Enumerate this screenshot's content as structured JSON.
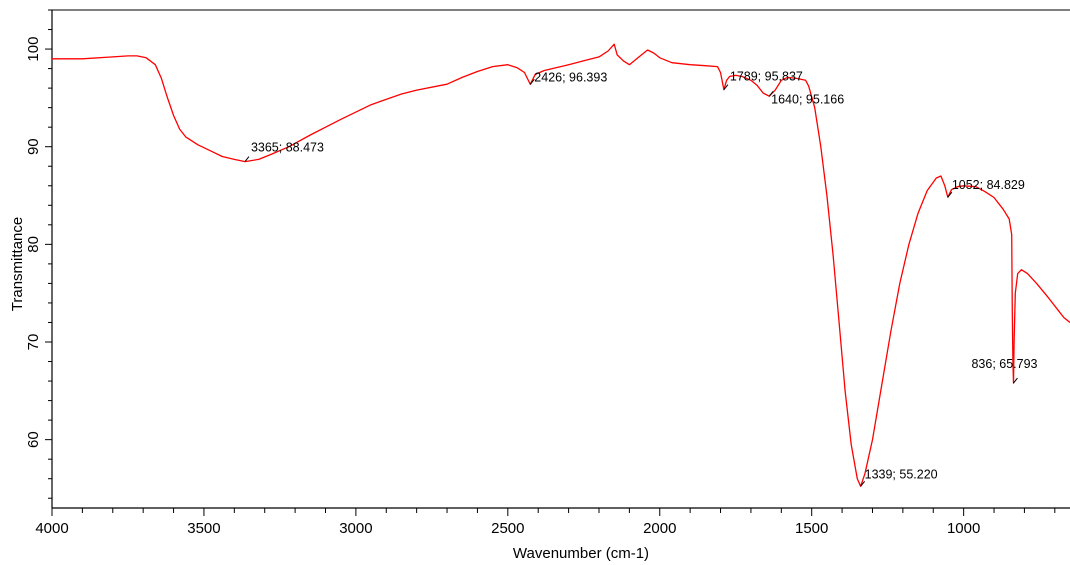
{
  "chart_data": {
    "type": "line",
    "title": "",
    "xlabel": "Wavenumber (cm-1)",
    "ylabel": "Transmittance",
    "xlim": [
      4000,
      650
    ],
    "ylim": [
      53,
      104
    ],
    "x_reversed": true,
    "grid": false,
    "x_ticks": [
      4000,
      3500,
      3000,
      2500,
      2000,
      1500,
      1000
    ],
    "y_ticks": [
      60,
      70,
      80,
      90,
      100
    ],
    "series_color": "#ff0000",
    "series": [
      {
        "points": [
          [
            4000,
            99.0
          ],
          [
            3900,
            99.0
          ],
          [
            3800,
            99.2
          ],
          [
            3750,
            99.3
          ],
          [
            3720,
            99.3
          ],
          [
            3690,
            99.1
          ],
          [
            3660,
            98.4
          ],
          [
            3640,
            97.0
          ],
          [
            3620,
            95.0
          ],
          [
            3600,
            93.2
          ],
          [
            3580,
            91.8
          ],
          [
            3560,
            91.0
          ],
          [
            3520,
            90.2
          ],
          [
            3480,
            89.6
          ],
          [
            3440,
            89.0
          ],
          [
            3400,
            88.7
          ],
          [
            3365,
            88.47
          ],
          [
            3320,
            88.7
          ],
          [
            3280,
            89.2
          ],
          [
            3220,
            90.0
          ],
          [
            3150,
            91.2
          ],
          [
            3050,
            92.8
          ],
          [
            2950,
            94.3
          ],
          [
            2850,
            95.4
          ],
          [
            2800,
            95.8
          ],
          [
            2700,
            96.4
          ],
          [
            2650,
            97.1
          ],
          [
            2600,
            97.7
          ],
          [
            2550,
            98.2
          ],
          [
            2500,
            98.4
          ],
          [
            2470,
            98.1
          ],
          [
            2445,
            97.6
          ],
          [
            2426,
            96.39
          ],
          [
            2410,
            97.4
          ],
          [
            2380,
            97.8
          ],
          [
            2300,
            98.4
          ],
          [
            2250,
            98.8
          ],
          [
            2200,
            99.2
          ],
          [
            2170,
            99.8
          ],
          [
            2150,
            100.5
          ],
          [
            2140,
            99.4
          ],
          [
            2120,
            98.8
          ],
          [
            2100,
            98.4
          ],
          [
            2080,
            98.9
          ],
          [
            2060,
            99.4
          ],
          [
            2040,
            99.9
          ],
          [
            2020,
            99.6
          ],
          [
            2000,
            99.1
          ],
          [
            1960,
            98.6
          ],
          [
            1900,
            98.4
          ],
          [
            1850,
            98.3
          ],
          [
            1810,
            98.2
          ],
          [
            1800,
            97.6
          ],
          [
            1789,
            95.84
          ],
          [
            1780,
            96.8
          ],
          [
            1770,
            97.2
          ],
          [
            1750,
            97.3
          ],
          [
            1730,
            97.2
          ],
          [
            1700,
            96.8
          ],
          [
            1680,
            96.3
          ],
          [
            1660,
            95.5
          ],
          [
            1640,
            95.17
          ],
          [
            1620,
            95.8
          ],
          [
            1600,
            96.8
          ],
          [
            1580,
            97.1
          ],
          [
            1550,
            97.0
          ],
          [
            1520,
            96.8
          ],
          [
            1510,
            96.2
          ],
          [
            1490,
            94.0
          ],
          [
            1470,
            90.0
          ],
          [
            1450,
            85.0
          ],
          [
            1430,
            79.0
          ],
          [
            1410,
            72.0
          ],
          [
            1390,
            65.0
          ],
          [
            1370,
            59.5
          ],
          [
            1350,
            56.0
          ],
          [
            1339,
            55.22
          ],
          [
            1325,
            56.5
          ],
          [
            1300,
            60.0
          ],
          [
            1270,
            65.5
          ],
          [
            1240,
            71.0
          ],
          [
            1210,
            76.0
          ],
          [
            1180,
            80.0
          ],
          [
            1150,
            83.2
          ],
          [
            1120,
            85.5
          ],
          [
            1090,
            86.8
          ],
          [
            1075,
            87.0
          ],
          [
            1062,
            86.0
          ],
          [
            1052,
            84.83
          ],
          [
            1040,
            85.6
          ],
          [
            1020,
            85.9
          ],
          [
            1000,
            86.0
          ],
          [
            960,
            85.9
          ],
          [
            930,
            85.4
          ],
          [
            900,
            84.8
          ],
          [
            870,
            83.6
          ],
          [
            850,
            82.6
          ],
          [
            842,
            81.0
          ],
          [
            840,
            73.0
          ],
          [
            838,
            68.0
          ],
          [
            836,
            65.79
          ],
          [
            834,
            70.0
          ],
          [
            830,
            75.0
          ],
          [
            822,
            77.0
          ],
          [
            810,
            77.4
          ],
          [
            790,
            77.0
          ],
          [
            760,
            76.0
          ],
          [
            720,
            74.5
          ],
          [
            690,
            73.3
          ],
          [
            670,
            72.5
          ],
          [
            650,
            72.0
          ]
        ]
      }
    ],
    "peak_labels": [
      {
        "x": 3365,
        "y": 88.473,
        "text": "3365; 88.473",
        "dx": 6,
        "dy": -14,
        "anchor": "start"
      },
      {
        "x": 2426,
        "y": 96.393,
        "text": "2426; 96.393",
        "dx": 4,
        "dy": -7,
        "anchor": "start"
      },
      {
        "x": 1789,
        "y": 95.837,
        "text": "1789; 95.837",
        "dx": 6,
        "dy": -13,
        "anchor": "start"
      },
      {
        "x": 1640,
        "y": 95.166,
        "text": "1640; 95.166",
        "dx": 2,
        "dy": 3,
        "anchor": "start"
      },
      {
        "x": 1052,
        "y": 84.829,
        "text": "1052; 84.829",
        "dx": 4,
        "dy": -12,
        "anchor": "start"
      },
      {
        "x": 836,
        "y": 65.793,
        "text": "836; 65.793",
        "dx": -42,
        "dy": -19,
        "anchor": "start"
      },
      {
        "x": 1339,
        "y": 55.22,
        "text": "1339; 55.220",
        "dx": 4,
        "dy": -12,
        "anchor": "start"
      }
    ]
  }
}
